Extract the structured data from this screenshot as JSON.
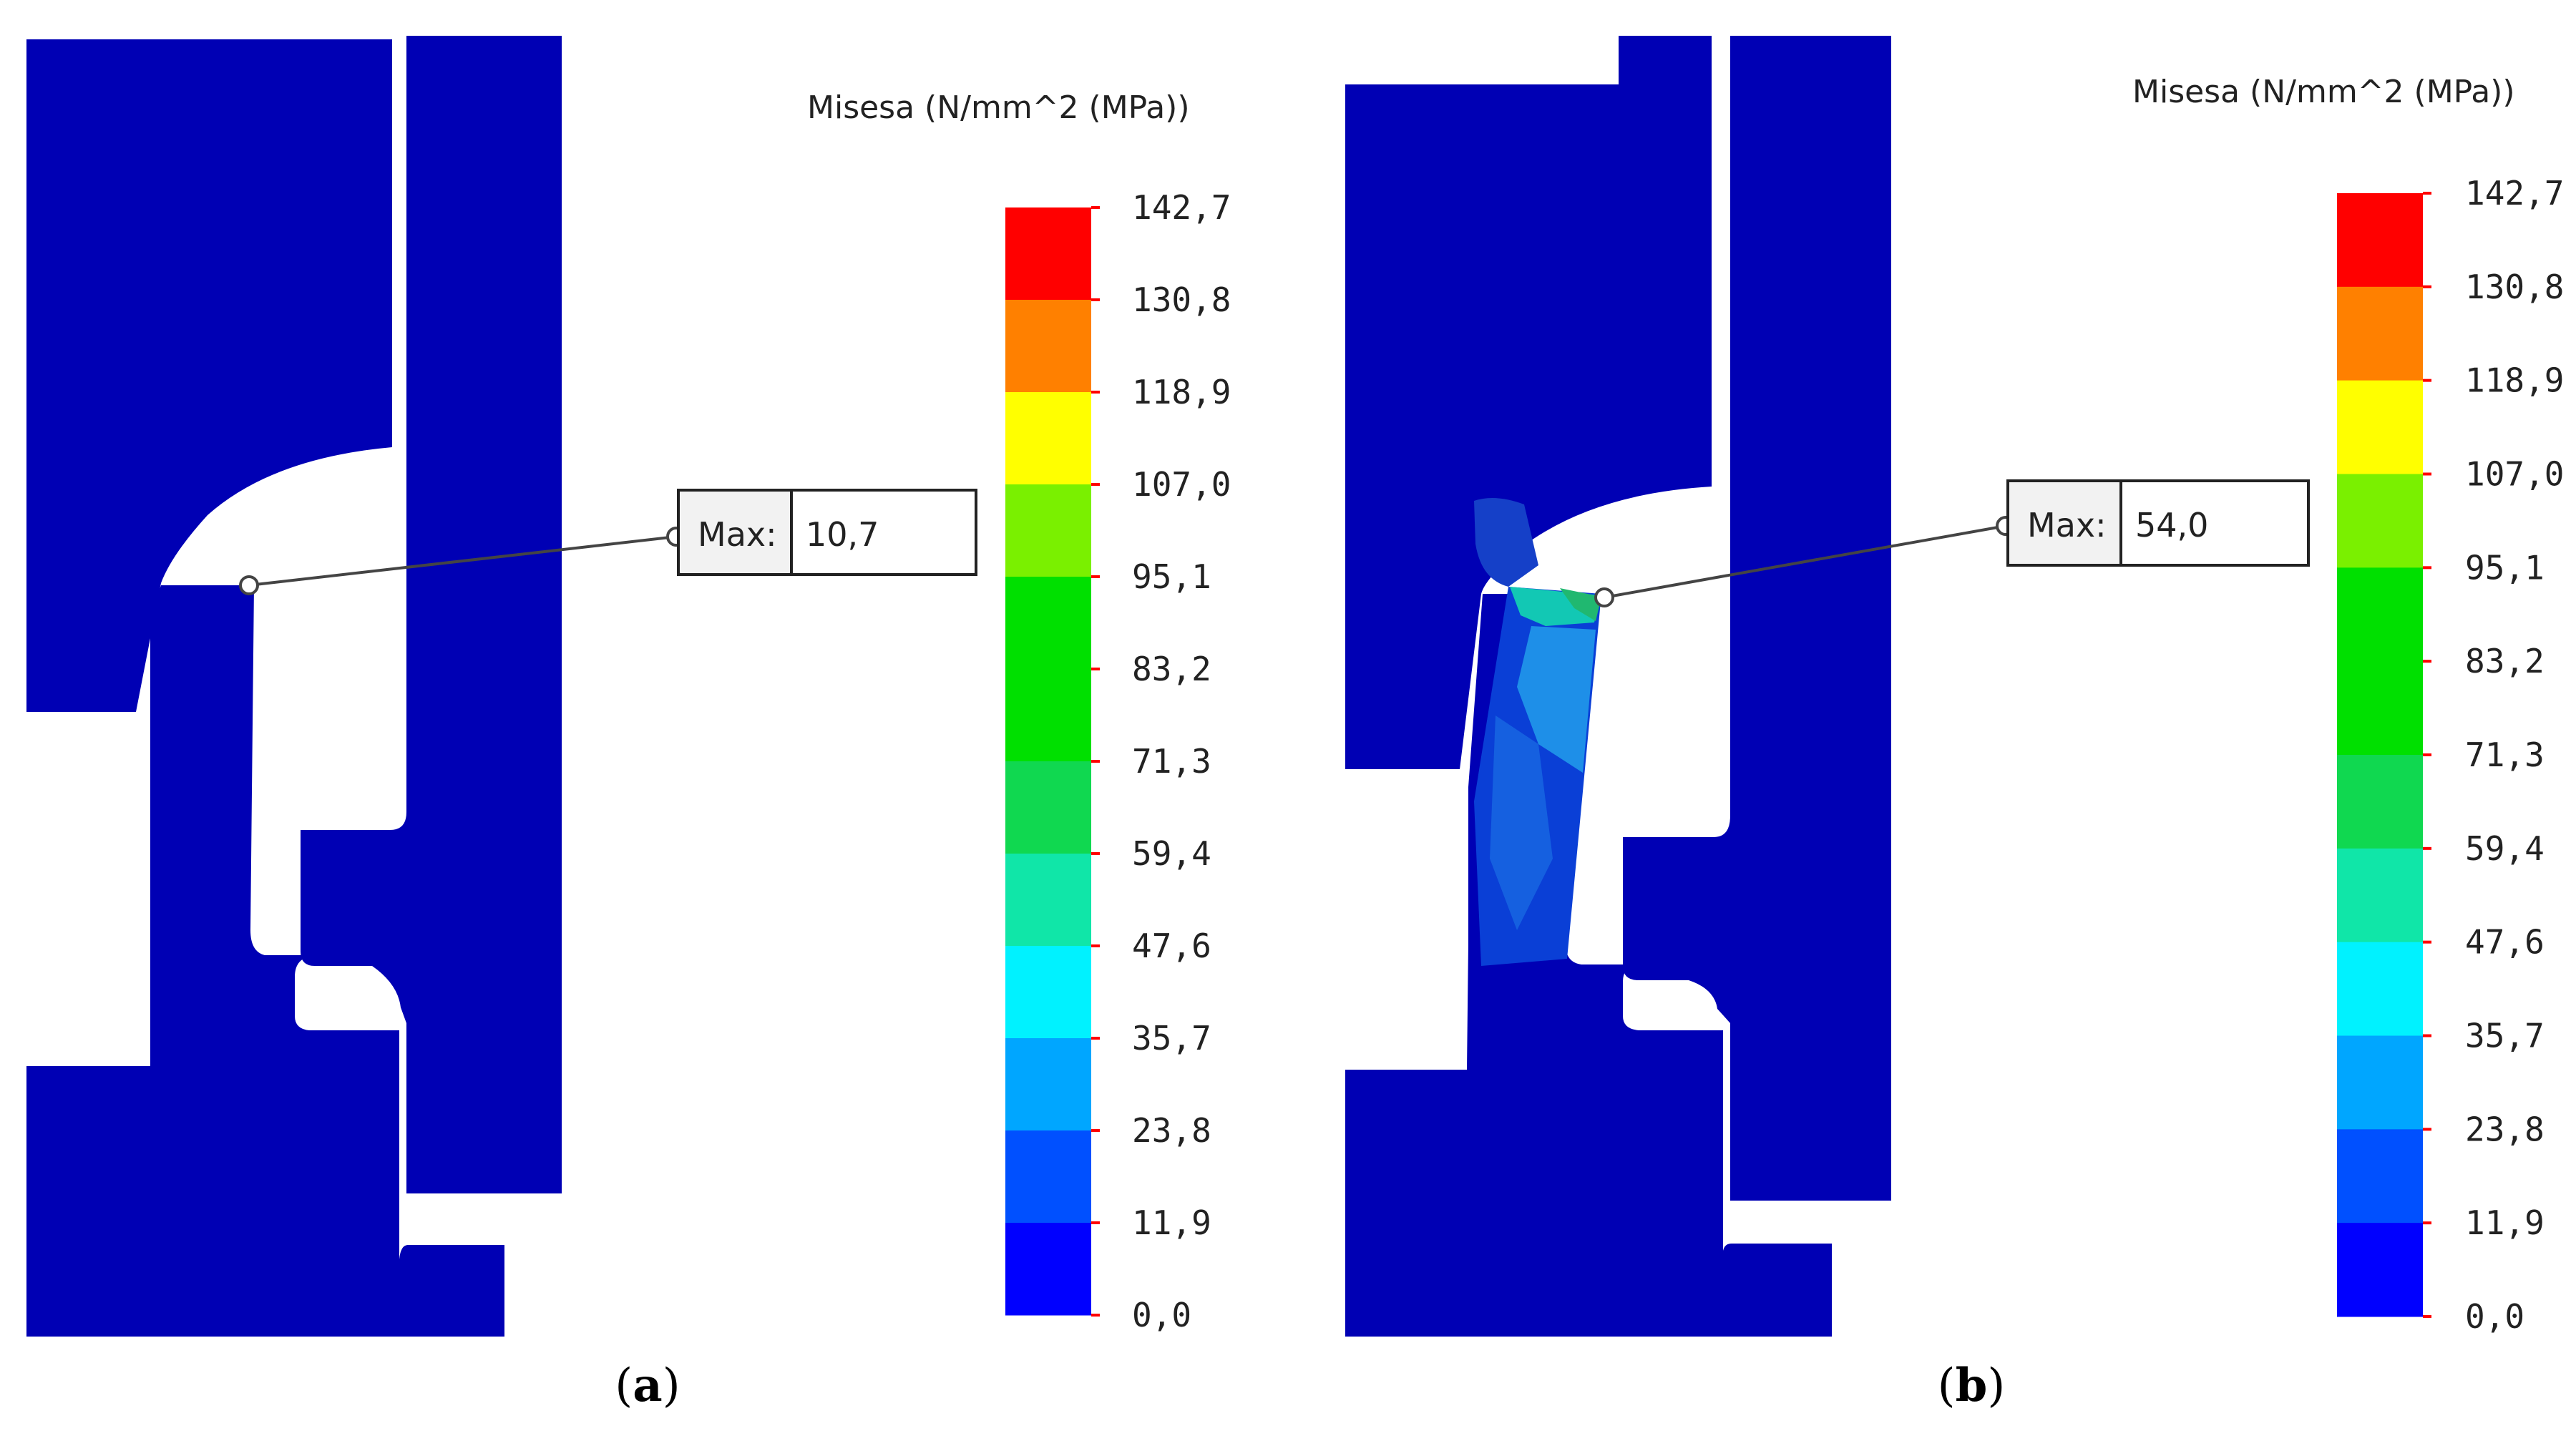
{
  "colors": {
    "part_fill": "#0000B4",
    "background": "#FFFFFF",
    "line": "#000000",
    "callout_box": "#F2F2F2",
    "stress_low": "#0A3FD6",
    "stress_mid": "#1E8FE8",
    "stress_high": "#12C8B4"
  },
  "colorbar_colors": [
    "#0000FF",
    "#0050FF",
    "#00A6FF",
    "#00F2FF",
    "#10E6A8",
    "#00D850",
    "#00E000",
    "#7AF000",
    "#FFFF00",
    "#FF8000",
    "#FF0000"
  ],
  "panels": [
    {
      "label_open": "(",
      "label_letter": "a",
      "label_close": ")",
      "legend_title": "Misesa (N/mm^2 (MPa))",
      "ticks": [
        "142,7",
        "130,8",
        "118,9",
        "107,0",
        "95,1",
        "83,2",
        "71,3",
        "59,4",
        "47,6",
        "35,7",
        "23,8",
        "11,9",
        "0,0"
      ],
      "callout": {
        "label": "Max:",
        "value": "10,7"
      },
      "stressed": false
    },
    {
      "label_open": "(",
      "label_letter": "b",
      "label_close": ")",
      "legend_title": "Misesa (N/mm^2 (MPa))",
      "ticks": [
        "142,7",
        "130,8",
        "118,9",
        "107,0",
        "95,1",
        "83,2",
        "71,3",
        "59,4",
        "47,6",
        "35,7",
        "23,8",
        "11,9",
        "0,0"
      ],
      "callout": {
        "label": "Max:",
        "value": "54,0"
      },
      "stressed": true
    }
  ]
}
